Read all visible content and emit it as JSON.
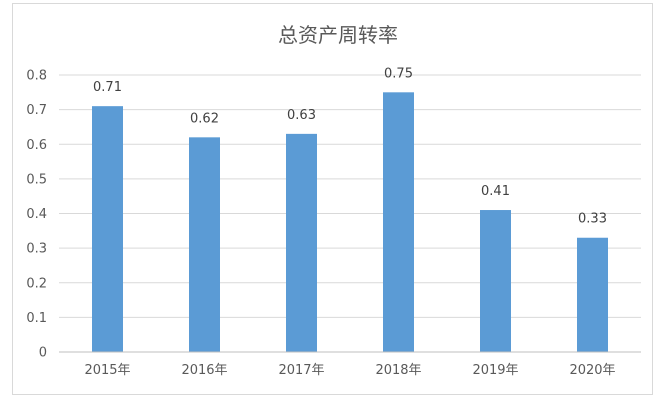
{
  "chart_data": {
    "type": "bar",
    "title": "总资产周转率",
    "xlabel": "",
    "ylabel": "",
    "categories": [
      "2015年",
      "2016年",
      "2017年",
      "2018年",
      "2019年",
      "2020年"
    ],
    "values": [
      0.71,
      0.62,
      0.63,
      0.75,
      0.41,
      0.33
    ],
    "data_labels": [
      "0.71",
      "0.62",
      "0.63",
      "0.75",
      "0.41",
      "0.33"
    ],
    "ylim": [
      0,
      0.8
    ],
    "yticks": [
      "0",
      "0.1",
      "0.2",
      "0.3",
      "0.4",
      "0.5",
      "0.6",
      "0.7",
      "0.8"
    ],
    "grid": true,
    "legend": "none",
    "bar_color": "#5b9bd5"
  }
}
